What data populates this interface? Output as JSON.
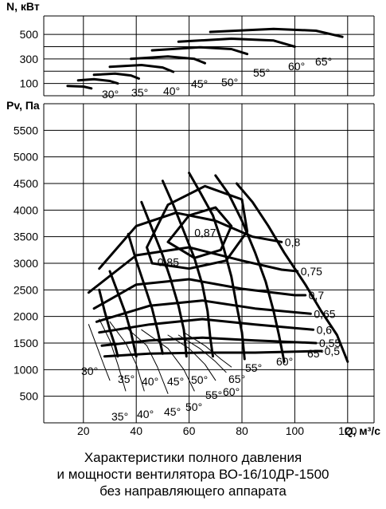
{
  "chart_data": {
    "type": "line",
    "title": "",
    "x": {
      "label": "Q, м³/с",
      "range": [
        5,
        130
      ],
      "ticks": [
        20,
        40,
        60,
        80,
        100,
        120
      ]
    },
    "power_panel": {
      "ylabel": "N, кВт",
      "range": [
        0,
        650
      ],
      "ticks": [
        100,
        300,
        500
      ],
      "grid": true,
      "curves": [
        {
          "angle": "30°",
          "points": [
            [
              14,
              80
            ],
            [
              20,
              75
            ],
            [
              23,
              60
            ]
          ]
        },
        {
          "angle": "35°",
          "points": [
            [
              18,
              125
            ],
            [
              24,
              135
            ],
            [
              30,
              120
            ],
            [
              33,
              100
            ]
          ]
        },
        {
          "angle": "40°",
          "points": [
            [
              24,
              170
            ],
            [
              32,
              180
            ],
            [
              38,
              165
            ],
            [
              41,
              140
            ]
          ]
        },
        {
          "angle": "45°",
          "points": [
            [
              30,
              235
            ],
            [
              42,
              250
            ],
            [
              50,
              230
            ],
            [
              54,
              195
            ]
          ]
        },
        {
          "angle": "50°",
          "points": [
            [
              38,
              300
            ],
            [
              52,
              320
            ],
            [
              62,
              300
            ],
            [
              66,
              265
            ]
          ]
        },
        {
          "angle": "55°",
          "points": [
            [
              46,
              370
            ],
            [
              64,
              395
            ],
            [
              76,
              380
            ],
            [
              82,
              340
            ]
          ]
        },
        {
          "angle": "60°",
          "points": [
            [
              56,
              440
            ],
            [
              76,
              465
            ],
            [
              92,
              450
            ],
            [
              100,
              400
            ]
          ]
        },
        {
          "angle": "65°",
          "points": [
            [
              68,
              520
            ],
            [
              92,
              545
            ],
            [
              108,
              530
            ],
            [
              118,
              480
            ]
          ]
        }
      ],
      "labels": [
        "30°",
        "35°",
        "40°",
        "45°",
        "50°",
        "55°",
        "60°",
        "65°"
      ]
    },
    "pressure_panel": {
      "ylabel": "Pv, Па",
      "range": [
        0,
        6000
      ],
      "ticks": [
        500,
        1000,
        1500,
        2000,
        2500,
        3000,
        3500,
        4000,
        4500,
        5000,
        5500
      ],
      "grid": true,
      "characteristics": [
        {
          "angle": "30°",
          "points": [
            [
              26,
              2500
            ],
            [
              28,
              2100
            ],
            [
              30,
              1750
            ],
            [
              32,
              1450
            ],
            [
              33,
              1250
            ]
          ]
        },
        {
          "angle": "35°",
          "points": [
            [
              30,
              2850
            ],
            [
              33,
              2450
            ],
            [
              36,
              2050
            ],
            [
              38,
              1700
            ],
            [
              40,
              1250
            ]
          ]
        },
        {
          "angle": "40°",
          "points": [
            [
              37,
              3550
            ],
            [
              40,
              3050
            ],
            [
              43,
              2600
            ],
            [
              46,
              2150
            ],
            [
              48,
              1750
            ],
            [
              50,
              1300
            ]
          ]
        },
        {
          "angle": "45°",
          "points": [
            [
              42,
              4150
            ],
            [
              46,
              3650
            ],
            [
              50,
              3150
            ],
            [
              53,
              2700
            ],
            [
              56,
              2200
            ],
            [
              58,
              1750
            ],
            [
              59,
              1250
            ]
          ]
        },
        {
          "angle": "50°",
          "points": [
            [
              50,
              4550
            ],
            [
              54,
              4100
            ],
            [
              58,
              3600
            ],
            [
              62,
              3100
            ],
            [
              65,
              2600
            ],
            [
              67,
              2100
            ],
            [
              68,
              1600
            ],
            [
              69,
              1250
            ]
          ]
        },
        {
          "angle": "55°",
          "points": [
            [
              60,
              4700
            ],
            [
              64,
              4350
            ],
            [
              69,
              3900
            ],
            [
              73,
              3300
            ],
            [
              76,
              2750
            ],
            [
              78,
              2200
            ],
            [
              80,
              1700
            ],
            [
              81,
              1200
            ]
          ]
        },
        {
          "angle": "60°",
          "points": [
            [
              70,
              4650
            ],
            [
              75,
              4300
            ],
            [
              80,
              3800
            ],
            [
              85,
              3200
            ],
            [
              89,
              2650
            ],
            [
              92,
              2100
            ],
            [
              94,
              1650
            ],
            [
              96,
              1150
            ]
          ]
        },
        {
          "angle": "65°",
          "points": [
            [
              78,
              4500
            ],
            [
              84,
              4150
            ],
            [
              90,
              3700
            ],
            [
              96,
              3200
            ],
            [
              104,
              2600
            ],
            [
              110,
              2100
            ],
            [
              116,
              1650
            ],
            [
              120,
              1150
            ]
          ]
        }
      ],
      "efficiency_lines": [
        {
          "label": "0,8",
          "points": [
            [
              26,
              2900
            ],
            [
              40,
              3700
            ],
            [
              55,
              3950
            ],
            [
              70,
              3800
            ],
            [
              84,
              3500
            ],
            [
              95,
              3400
            ]
          ]
        },
        {
          "label": "0,75",
          "points": [
            [
              22,
              2450
            ],
            [
              40,
              3150
            ],
            [
              60,
              3300
            ],
            [
              80,
              3050
            ],
            [
              95,
              2880
            ],
            [
              101,
              2850
            ]
          ]
        },
        {
          "label": "0,7",
          "points": [
            [
              24,
              2150
            ],
            [
              40,
              2600
            ],
            [
              60,
              2700
            ],
            [
              80,
              2520
            ],
            [
              100,
              2400
            ],
            [
              104,
              2400
            ]
          ]
        },
        {
          "label": "0,65",
          "points": [
            [
              25,
              1900
            ],
            [
              45,
              2200
            ],
            [
              65,
              2300
            ],
            [
              85,
              2150
            ],
            [
              106,
              2050
            ]
          ]
        },
        {
          "label": "0,6",
          "points": [
            [
              26,
              1700
            ],
            [
              45,
              1850
            ],
            [
              65,
              1950
            ],
            [
              85,
              1850
            ],
            [
              107,
              1750
            ]
          ]
        },
        {
          "label": "0,55",
          "points": [
            [
              27,
              1450
            ],
            [
              45,
              1550
            ],
            [
              65,
              1600
            ],
            [
              85,
              1550
            ],
            [
              108,
              1500
            ]
          ]
        },
        {
          "label": "0,5",
          "points": [
            [
              28,
              1250
            ],
            [
              45,
              1300
            ],
            [
              65,
              1320
            ],
            [
              85,
              1320
            ],
            [
              110,
              1350
            ]
          ]
        }
      ],
      "efficiency_islands": [
        {
          "label": "0,87",
          "points": [
            [
              52,
              3400
            ],
            [
              60,
              3900
            ],
            [
              70,
              4050
            ],
            [
              76,
              3700
            ],
            [
              72,
              3250
            ],
            [
              62,
              3100
            ],
            [
              52,
              3400
            ]
          ]
        },
        {
          "label": "0,85",
          "points": [
            [
              44,
              3300
            ],
            [
              52,
              4100
            ],
            [
              66,
              4450
            ],
            [
              80,
              4200
            ],
            [
              82,
              3600
            ],
            [
              74,
              3050
            ],
            [
              60,
              2900
            ],
            [
              46,
              3000
            ],
            [
              44,
              3300
            ]
          ]
        }
      ],
      "power_curves": [
        {
          "angle": "30°",
          "points": [
            [
              22,
              1850
            ],
            [
              25,
              1450
            ],
            [
              28,
              1050
            ],
            [
              30,
              800
            ]
          ]
        },
        {
          "angle": "35°",
          "points": [
            [
              26,
              1950
            ],
            [
              30,
              1550
            ],
            [
              33,
              1100
            ],
            [
              36,
              600
            ]
          ]
        },
        {
          "angle": "40°",
          "points": [
            [
              30,
              1900
            ],
            [
              36,
              1500
            ],
            [
              40,
              1100
            ],
            [
              43,
              600
            ]
          ]
        },
        {
          "angle": "45°",
          "points": [
            [
              36,
              1800
            ],
            [
              44,
              1450
            ],
            [
              48,
              1050
            ],
            [
              52,
              550
            ]
          ]
        },
        {
          "angle": "50°",
          "points": [
            [
              42,
              1750
            ],
            [
              52,
              1400
            ],
            [
              58,
              1000
            ],
            [
              62,
              600
            ]
          ]
        },
        {
          "angle": "55°",
          "points": [
            [
              52,
              1650
            ],
            [
              60,
              1400
            ],
            [
              66,
              1100
            ],
            [
              70,
              800
            ]
          ]
        },
        {
          "angle": "60°",
          "points": [
            [
              56,
              1650
            ],
            [
              64,
              1400
            ],
            [
              70,
              1150
            ],
            [
              74,
              950
            ]
          ]
        },
        {
          "angle": "65°",
          "points": [
            [
              58,
              1700
            ],
            [
              66,
              1450
            ],
            [
              72,
              1200
            ],
            [
              76,
              1050
            ]
          ]
        }
      ],
      "angle_labels_lower": [
        "35°",
        "40°",
        "45°",
        "50°"
      ],
      "angle_labels_inner": [
        "30°",
        "35°",
        "40°",
        "45°",
        "50°",
        "55°",
        "60°",
        "65°",
        "55°",
        "60°",
        "65°"
      ]
    }
  },
  "caption": {
    "line1": "Характеристики полного давления",
    "line2": "и мощности вентилятора ВО-16/10ДР-1500",
    "line3": "без направляющего аппарата"
  }
}
